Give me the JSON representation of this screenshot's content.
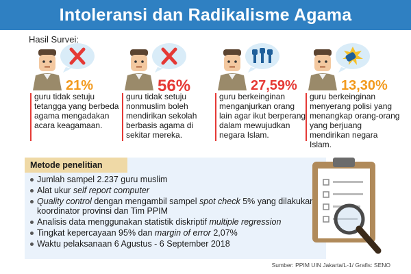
{
  "header": {
    "title": "Intoleransi dan Radikalisme Agama"
  },
  "survey_label": "Hasil Survei:",
  "stats": [
    {
      "percent": "21%",
      "percent_color": "#f29a1e",
      "description": "guru tidak setuju tetangga yang berbeda agama mengadakan acara keagamaan.",
      "icon": "red-x-icon"
    },
    {
      "percent": "56%",
      "percent_color": "#e53935",
      "description": "guru tidak setuju nonmuslim boleh mendirikan sekolah berbasis agama di sekitar mereka.",
      "icon": "red-x-icon"
    },
    {
      "percent": "27,59%",
      "percent_color": "#e53935",
      "description": "guru berkeinginan menganjurkan orang lain agar ikut berperang dalam mewujudkan negara Islam.",
      "icon": "raised-fists-icon"
    },
    {
      "percent": "13,30%",
      "percent_color": "#f29a1e",
      "description": "guru berkeinginan menyerang polisi yang menangkap orang-orang yang berjuang mendirikan negara Islam.",
      "icon": "punch-icon"
    }
  ],
  "method": {
    "title": "Metode penelitian",
    "items": [
      {
        "parts": [
          {
            "text": "Jumlah sampel 2.237 guru muslim",
            "italic": false
          }
        ]
      },
      {
        "parts": [
          {
            "text": "Alat ukur ",
            "italic": false
          },
          {
            "text": "self report computer",
            "italic": true
          }
        ]
      },
      {
        "parts": [
          {
            "text": "Quality control",
            "italic": true
          },
          {
            "text": " dengan mengambil sampel ",
            "italic": false
          },
          {
            "text": "spot check",
            "italic": true
          },
          {
            "text": " 5% yang dilakukan koordinator provinsi dan Tim PPIM",
            "italic": false
          }
        ]
      },
      {
        "parts": [
          {
            "text": "Analisis data menggunakan statistik diskriptif ",
            "italic": false
          },
          {
            "text": "multiple regression",
            "italic": true
          }
        ]
      },
      {
        "parts": [
          {
            "text": "Tingkat kepercayaan 95% dan ",
            "italic": false
          },
          {
            "text": "margin of error",
            "italic": true
          },
          {
            "text": " 2,07%",
            "italic": false
          }
        ]
      },
      {
        "parts": [
          {
            "text": "Waktu pelaksanaan 6 Agustus - 6 September 2018",
            "italic": false
          }
        ]
      }
    ]
  },
  "source": "Sumber: PPIM UIN Jakarta/L-1/ Grafis: SENO",
  "colors": {
    "banner": "#2f80c2",
    "accent_orange": "#f29a1e",
    "accent_red": "#e53935",
    "method_bg": "#eaf2fb",
    "method_title_bg": "#efd9a6"
  }
}
